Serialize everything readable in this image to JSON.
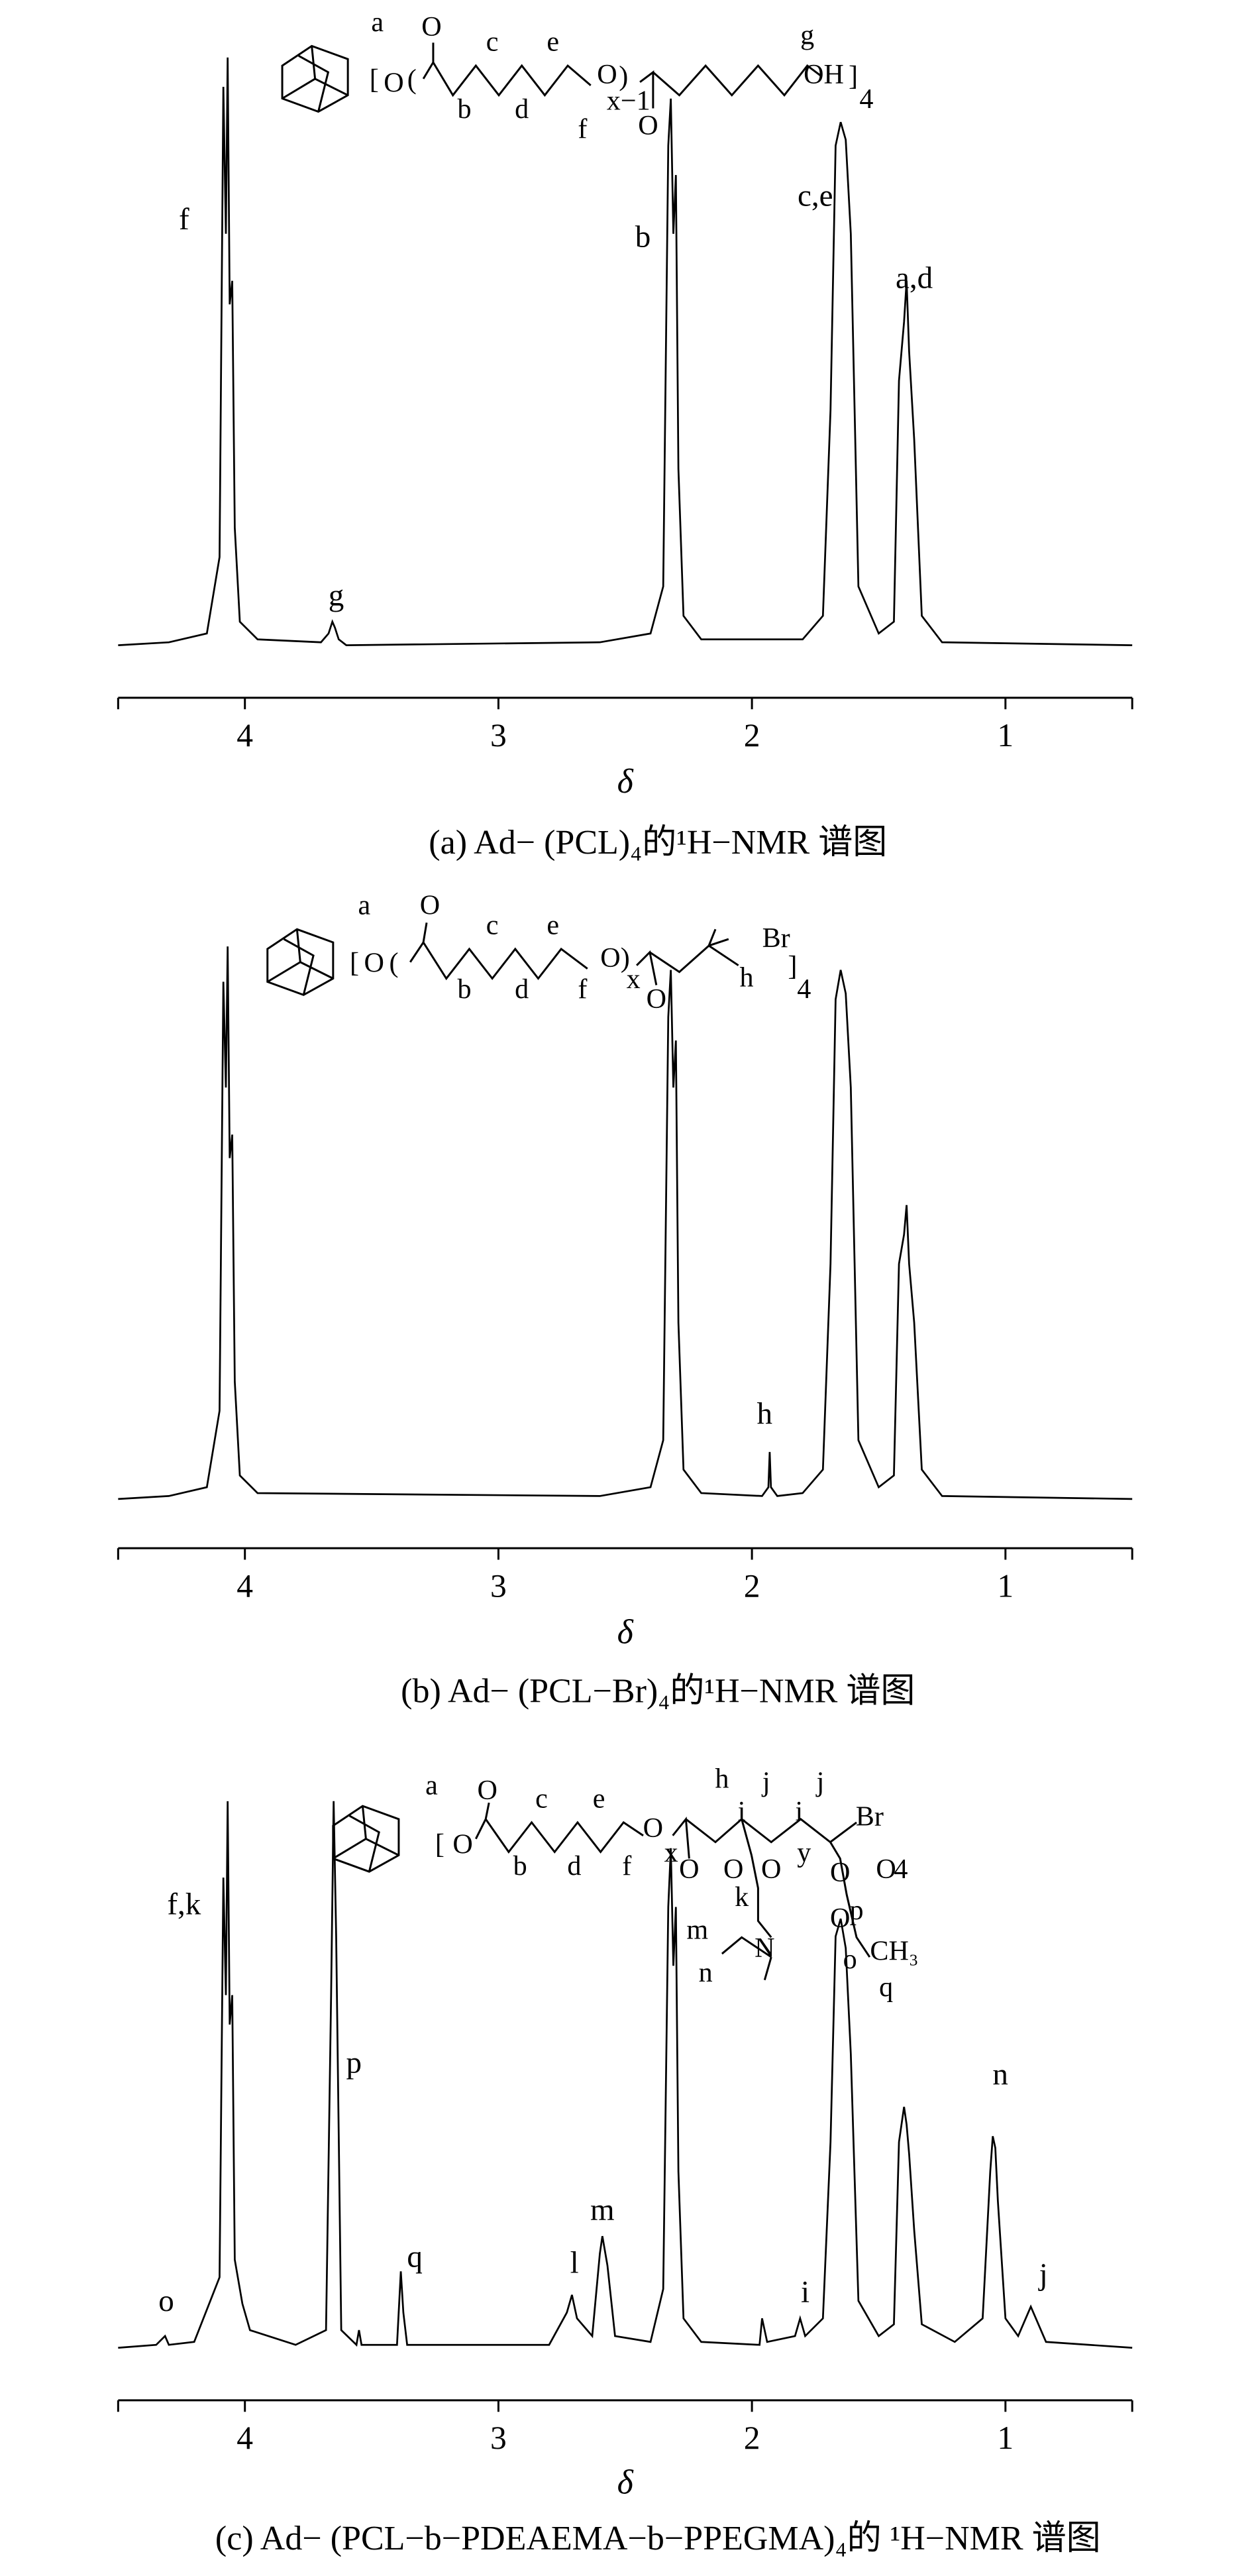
{
  "chart_data": [
    {
      "type": "line",
      "title": "(a) Ad− (PCL)₄的¹H−NMR 谱图",
      "xlabel": "δ",
      "color": "#000000",
      "xlim": [
        4.5,
        0.5
      ],
      "xticks": [
        4,
        3,
        2,
        1
      ],
      "ylim": [
        0,
        100
      ],
      "x": [
        4.5,
        4.3,
        4.15,
        4.1,
        4.085,
        4.075,
        4.068,
        4.06,
        4.05,
        4.04,
        4.02,
        3.95,
        3.7,
        3.67,
        3.655,
        3.645,
        3.63,
        3.6,
        2.6,
        2.4,
        2.35,
        2.33,
        2.32,
        2.31,
        2.3,
        2.29,
        2.27,
        2.2,
        1.8,
        1.72,
        1.69,
        1.67,
        1.65,
        1.63,
        1.61,
        1.58,
        1.5,
        1.44,
        1.42,
        1.4,
        1.39,
        1.38,
        1.36,
        1.33,
        1.25,
        0.5
      ],
      "values": [
        0,
        0.5,
        2,
        15,
        95,
        70,
        100,
        58,
        62,
        20,
        4,
        1,
        0.5,
        2,
        4,
        3,
        1,
        0,
        0.5,
        2,
        10,
        85,
        93,
        70,
        80,
        30,
        5,
        1,
        1,
        5,
        40,
        85,
        89,
        86,
        70,
        10,
        2,
        4,
        45,
        55,
        62,
        50,
        35,
        5,
        0.5,
        0
      ],
      "annotations": [
        {
          "text": "f",
          "x": 4.24,
          "y": 72
        },
        {
          "text": "g",
          "x": 3.64,
          "y": 8
        },
        {
          "text": "b",
          "x": 2.43,
          "y": 69
        },
        {
          "text": "c,e",
          "x": 1.75,
          "y": 76
        },
        {
          "text": "a,d",
          "x": 1.36,
          "y": 62
        }
      ],
      "structure_labels": [
        "a",
        "[",
        "O",
        "(",
        "O",
        "c",
        "e",
        "b",
        "d",
        "f",
        "O",
        ")",
        "x−1",
        "O",
        "g",
        "OH",
        "]",
        "4"
      ]
    },
    {
      "type": "line",
      "title": "(b) Ad− (PCL−Br)₄的¹H−NMR 谱图",
      "xlabel": "δ",
      "color": "#000000",
      "xlim": [
        4.5,
        0.5
      ],
      "xticks": [
        4,
        3,
        2,
        1
      ],
      "ylim": [
        0,
        100
      ],
      "x": [
        4.5,
        4.3,
        4.15,
        4.1,
        4.085,
        4.075,
        4.068,
        4.06,
        4.05,
        4.04,
        4.02,
        3.95,
        2.6,
        2.4,
        2.35,
        2.33,
        2.32,
        2.31,
        2.3,
        2.29,
        2.27,
        2.2,
        1.96,
        1.935,
        1.93,
        1.925,
        1.9,
        1.8,
        1.72,
        1.69,
        1.67,
        1.65,
        1.63,
        1.61,
        1.58,
        1.5,
        1.44,
        1.42,
        1.4,
        1.39,
        1.38,
        1.36,
        1.33,
        1.25,
        0.5
      ],
      "values": [
        0,
        0.5,
        2,
        15,
        88,
        70,
        94,
        58,
        62,
        20,
        4,
        1,
        0.5,
        2,
        10,
        82,
        90,
        70,
        78,
        30,
        5,
        1,
        0.5,
        2,
        8,
        2,
        0.5,
        1,
        5,
        40,
        85,
        90,
        86,
        70,
        10,
        2,
        4,
        40,
        45,
        50,
        40,
        30,
        5,
        0.5,
        0
      ],
      "annotations": [
        {
          "text": "h",
          "x": 1.95,
          "y": 14
        }
      ],
      "structure_labels": [
        "a",
        "[",
        "O",
        "(",
        "O",
        "c",
        "e",
        "b",
        "d",
        "f",
        "O",
        ")",
        "x",
        "O",
        "Br",
        "h",
        "]",
        "4"
      ]
    },
    {
      "type": "line",
      "title": "(c) Ad− (PCL−b−PDEAEMA−b−PPEGMA)₄的 ¹H−NMR 谱图",
      "xlabel": "δ",
      "color": "#000000",
      "xlim": [
        4.5,
        0.5
      ],
      "xticks": [
        4,
        3,
        2,
        1
      ],
      "ylim": [
        0,
        100
      ],
      "x": [
        4.5,
        4.35,
        4.315,
        4.3,
        4.2,
        4.1,
        4.085,
        4.075,
        4.068,
        4.06,
        4.05,
        4.04,
        4.01,
        3.98,
        3.8,
        3.68,
        3.66,
        3.65,
        3.64,
        3.62,
        3.56,
        3.55,
        3.54,
        3.4,
        3.385,
        3.375,
        3.36,
        2.8,
        2.73,
        2.71,
        2.69,
        2.63,
        2.6,
        2.59,
        2.57,
        2.54,
        2.4,
        2.35,
        2.33,
        2.32,
        2.31,
        2.3,
        2.29,
        2.27,
        2.2,
        1.97,
        1.96,
        1.94,
        1.83,
        1.81,
        1.79,
        1.72,
        1.69,
        1.67,
        1.65,
        1.63,
        1.61,
        1.58,
        1.5,
        1.44,
        1.42,
        1.4,
        1.39,
        1.38,
        1.36,
        1.33,
        1.2,
        1.09,
        1.06,
        1.05,
        1.04,
        1.03,
        1.0,
        0.95,
        0.91,
        0.9,
        0.88,
        0.84,
        0.5
      ],
      "values": [
        0,
        0.5,
        2,
        0.5,
        1,
        12,
        80,
        60,
        93,
        55,
        60,
        15,
        7.5,
        3,
        0.5,
        3,
        60,
        93,
        70,
        3,
        0.5,
        3,
        0.5,
        0.5,
        13,
        6,
        0.5,
        0.5,
        6,
        9,
        5,
        2,
        16,
        19,
        14,
        2,
        1,
        10,
        75,
        85,
        65,
        75,
        30,
        5,
        1,
        0.5,
        5,
        1,
        2,
        5,
        2,
        5,
        35,
        70,
        73,
        68,
        50,
        8,
        2,
        4,
        35,
        41,
        38,
        33,
        20,
        4,
        1,
        5,
        30,
        36,
        34,
        25,
        5,
        2,
        6,
        7,
        5,
        1,
        0
      ],
      "annotations": [
        {
          "text": "o",
          "x": 4.31,
          "y": 7.5
        },
        {
          "text": "f,k",
          "x": 4.24,
          "y": 75
        },
        {
          "text": "p",
          "x": 3.57,
          "y": 48
        },
        {
          "text": "q",
          "x": 3.33,
          "y": 15
        },
        {
          "text": "l",
          "x": 2.7,
          "y": 14
        },
        {
          "text": "m",
          "x": 2.59,
          "y": 23
        },
        {
          "text": "i",
          "x": 1.79,
          "y": 9
        },
        {
          "text": "n",
          "x": 1.02,
          "y": 46
        },
        {
          "text": "j",
          "x": 0.85,
          "y": 12
        }
      ],
      "structure_labels": [
        "a",
        "[",
        "O",
        "O",
        "c",
        "e",
        "b",
        "d",
        "f",
        "O",
        "x",
        "O",
        "h",
        "i",
        "j",
        "O",
        "O",
        "k",
        "m",
        "N",
        "n",
        "y",
        "i",
        "j",
        "Br",
        "p",
        "O",
        "O",
        "4",
        "O",
        "o",
        "CH₃",
        "q"
      ]
    }
  ]
}
